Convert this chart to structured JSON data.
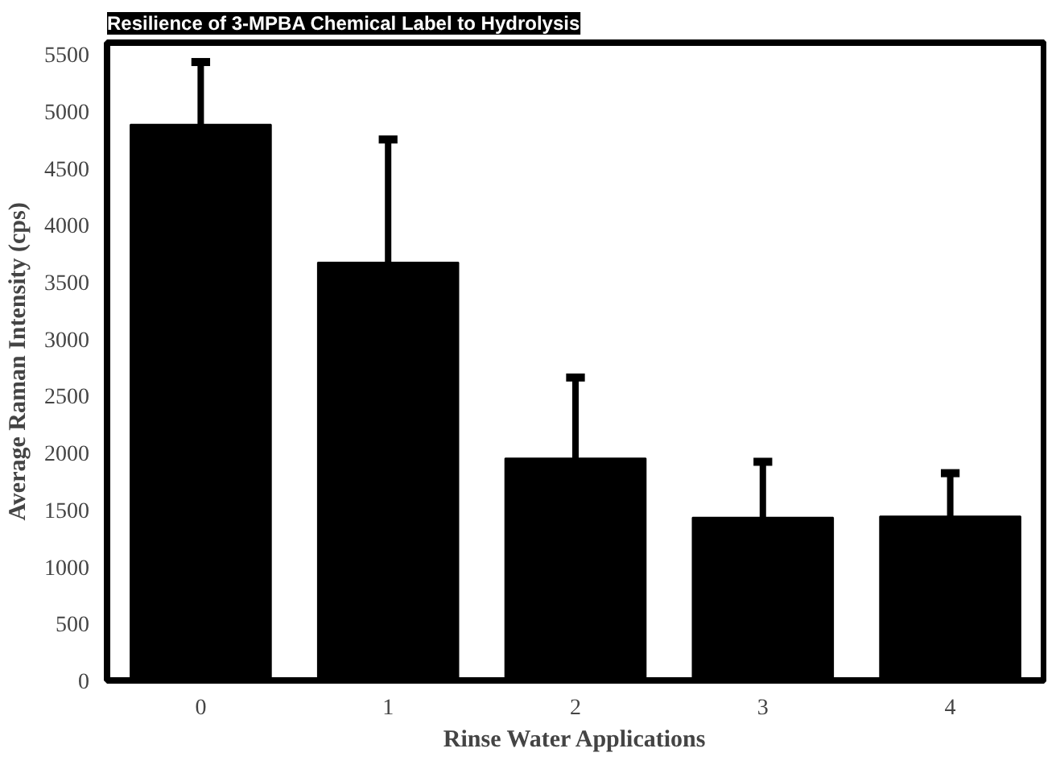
{
  "chart_data": {
    "type": "bar",
    "title": "Resilience of 3-MPBA Chemical Label to Hydrolysis",
    "xlabel": "Rinse Water Applications",
    "ylabel": "Average Raman Intensity (cps)",
    "categories": [
      "0",
      "1",
      "2",
      "3",
      "4"
    ],
    "values": [
      4880,
      3670,
      1950,
      1430,
      1440
    ],
    "errors": [
      [
        4880,
        5430
      ],
      [
        3670,
        4750
      ],
      [
        1950,
        2660
      ],
      [
        1430,
        1920
      ],
      [
        1440,
        1820
      ]
    ],
    "color": "#000000",
    "ylim": [
      0,
      5600
    ],
    "yticks": [
      0,
      500,
      1000,
      1500,
      2000,
      2500,
      3000,
      3500,
      4000,
      4500,
      5000,
      5500
    ],
    "grid": false
  }
}
